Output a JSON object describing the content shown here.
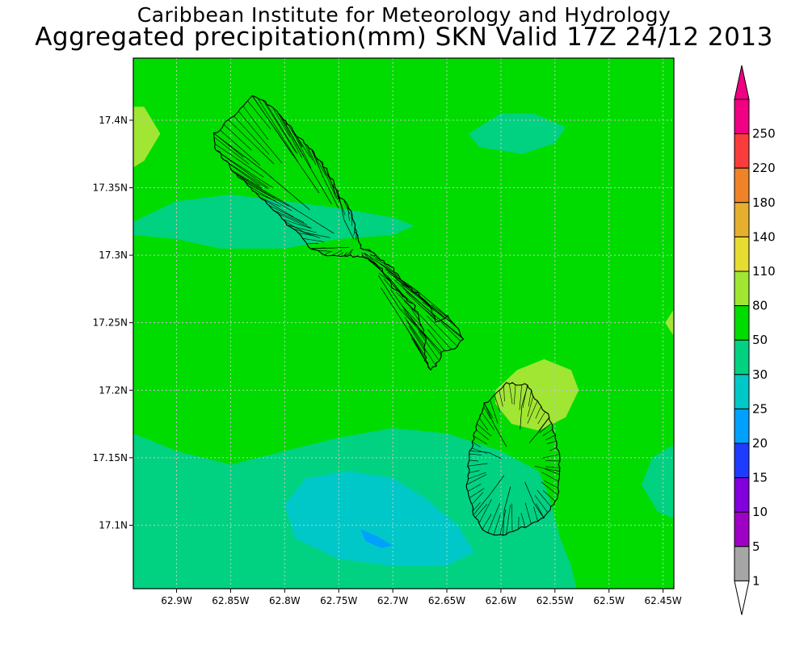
{
  "title": "Caribbean Institute for Meteorology and Hydrology",
  "subtitle": "Aggregated precipitation(mm) SKN Valid 17Z 24/12 2013",
  "map": {
    "lon_min": -62.94,
    "lon_max": -62.44,
    "lat_min": 17.053,
    "lat_max": 17.446,
    "background_category": "50-80",
    "x_ticks": [
      {
        "value": -62.9,
        "label": "62.9W"
      },
      {
        "value": -62.85,
        "label": "62.85W"
      },
      {
        "value": -62.8,
        "label": "62.8W"
      },
      {
        "value": -62.75,
        "label": "62.75W"
      },
      {
        "value": -62.7,
        "label": "62.7W"
      },
      {
        "value": -62.65,
        "label": "62.65W"
      },
      {
        "value": -62.6,
        "label": "62.6W"
      },
      {
        "value": -62.55,
        "label": "62.55W"
      },
      {
        "value": -62.5,
        "label": "62.5W"
      },
      {
        "value": -62.45,
        "label": "62.45W"
      }
    ],
    "y_ticks": [
      {
        "value": 17.4,
        "label": "17.4N"
      },
      {
        "value": 17.35,
        "label": "17.35N"
      },
      {
        "value": 17.3,
        "label": "17.3N"
      },
      {
        "value": 17.25,
        "label": "17.25N"
      },
      {
        "value": 17.2,
        "label": "17.2N"
      },
      {
        "value": 17.15,
        "label": "17.15N"
      },
      {
        "value": 17.1,
        "label": "17.1N"
      }
    ],
    "grid": true,
    "islands": [
      "St. Kitts",
      "Nevis"
    ],
    "zones": [
      {
        "name": "nw-corner",
        "category": "80-110",
        "points": [
          [
            -62.94,
            17.41
          ],
          [
            -62.93,
            17.41
          ],
          [
            -62.915,
            17.39
          ],
          [
            -62.93,
            17.37
          ],
          [
            -62.94,
            17.365
          ]
        ]
      },
      {
        "name": "west-band",
        "category": "30-50",
        "points": [
          [
            -62.94,
            17.325
          ],
          [
            -62.9,
            17.34
          ],
          [
            -62.85,
            17.345
          ],
          [
            -62.8,
            17.34
          ],
          [
            -62.75,
            17.335
          ],
          [
            -62.7,
            17.328
          ],
          [
            -62.68,
            17.322
          ],
          [
            -62.7,
            17.315
          ],
          [
            -62.75,
            17.312
          ],
          [
            -62.8,
            17.305
          ],
          [
            -62.86,
            17.305
          ],
          [
            -62.9,
            17.312
          ],
          [
            -62.94,
            17.315
          ]
        ]
      },
      {
        "name": "ne-blob",
        "category": "30-50",
        "points": [
          [
            -62.63,
            17.39
          ],
          [
            -62.6,
            17.405
          ],
          [
            -62.57,
            17.405
          ],
          [
            -62.54,
            17.395
          ],
          [
            -62.55,
            17.383
          ],
          [
            -62.58,
            17.375
          ],
          [
            -62.62,
            17.38
          ]
        ]
      },
      {
        "name": "east-edge",
        "category": "80-110",
        "points": [
          [
            -62.44,
            17.26
          ],
          [
            -62.448,
            17.25
          ],
          [
            -62.44,
            17.24
          ]
        ]
      },
      {
        "name": "nevis-north",
        "category": "80-110",
        "points": [
          [
            -62.605,
            17.2
          ],
          [
            -62.585,
            17.215
          ],
          [
            -62.56,
            17.223
          ],
          [
            -62.535,
            17.215
          ],
          [
            -62.528,
            17.2
          ],
          [
            -62.54,
            17.18
          ],
          [
            -62.565,
            17.17
          ],
          [
            -62.59,
            17.175
          ],
          [
            -62.605,
            17.19
          ]
        ]
      },
      {
        "name": "south-band",
        "category": "30-50",
        "points": [
          [
            -62.94,
            17.168
          ],
          [
            -62.9,
            17.155
          ],
          [
            -62.85,
            17.145
          ],
          [
            -62.8,
            17.155
          ],
          [
            -62.75,
            17.165
          ],
          [
            -62.7,
            17.172
          ],
          [
            -62.65,
            17.168
          ],
          [
            -62.6,
            17.155
          ],
          [
            -62.565,
            17.14
          ],
          [
            -62.555,
            17.12
          ],
          [
            -62.545,
            17.09
          ],
          [
            -62.535,
            17.07
          ],
          [
            -62.53,
            17.053
          ],
          [
            -62.9,
            17.053
          ],
          [
            -62.94,
            17.053
          ]
        ]
      },
      {
        "name": "east-blob",
        "category": "30-50",
        "points": [
          [
            -62.44,
            17.16
          ],
          [
            -62.46,
            17.15
          ],
          [
            -62.47,
            17.13
          ],
          [
            -62.455,
            17.11
          ],
          [
            -62.44,
            17.105
          ]
        ]
      },
      {
        "name": "south-inner",
        "category": "25-30",
        "points": [
          [
            -62.8,
            17.115
          ],
          [
            -62.78,
            17.135
          ],
          [
            -62.74,
            17.14
          ],
          [
            -62.7,
            17.135
          ],
          [
            -62.67,
            17.12
          ],
          [
            -62.64,
            17.1
          ],
          [
            -62.625,
            17.08
          ],
          [
            -62.65,
            17.07
          ],
          [
            -62.7,
            17.07
          ],
          [
            -62.75,
            17.075
          ],
          [
            -62.79,
            17.09
          ]
        ]
      },
      {
        "name": "small-blue",
        "category": "20-25",
        "points": [
          [
            -62.73,
            17.097
          ],
          [
            -62.715,
            17.092
          ],
          [
            -62.7,
            17.085
          ],
          [
            -62.71,
            17.083
          ],
          [
            -62.725,
            17.088
          ]
        ]
      }
    ],
    "boundaries": [
      {
        "name": "st-kitts-outline",
        "points": [
          [
            -62.865,
            17.39
          ],
          [
            -62.845,
            17.405
          ],
          [
            -62.83,
            17.418
          ],
          [
            -62.82,
            17.415
          ],
          [
            -62.805,
            17.405
          ],
          [
            -62.79,
            17.39
          ],
          [
            -62.775,
            17.378
          ],
          [
            -62.76,
            17.362
          ],
          [
            -62.75,
            17.345
          ],
          [
            -62.74,
            17.335
          ],
          [
            -62.735,
            17.32
          ],
          [
            -62.73,
            17.305
          ],
          [
            -62.715,
            17.3
          ],
          [
            -62.7,
            17.29
          ],
          [
            -62.69,
            17.28
          ],
          [
            -62.675,
            17.27
          ],
          [
            -62.665,
            17.262
          ],
          [
            -62.66,
            17.25
          ],
          [
            -62.65,
            17.255
          ],
          [
            -62.64,
            17.245
          ],
          [
            -62.635,
            17.238
          ],
          [
            -62.64,
            17.232
          ],
          [
            -62.655,
            17.228
          ],
          [
            -62.66,
            17.218
          ],
          [
            -62.665,
            17.215
          ],
          [
            -62.67,
            17.222
          ],
          [
            -62.67,
            17.24
          ],
          [
            -62.68,
            17.262
          ],
          [
            -62.69,
            17.27
          ],
          [
            -62.7,
            17.276
          ],
          [
            -62.71,
            17.29
          ],
          [
            -62.725,
            17.298
          ],
          [
            -62.745,
            17.3
          ],
          [
            -62.76,
            17.3
          ],
          [
            -62.775,
            17.305
          ],
          [
            -62.79,
            17.318
          ],
          [
            -62.8,
            17.325
          ],
          [
            -62.825,
            17.345
          ],
          [
            -62.845,
            17.36
          ],
          [
            -62.865,
            17.38
          ]
        ]
      },
      {
        "name": "nevis-outline",
        "points": [
          [
            -62.615,
            17.19
          ],
          [
            -62.595,
            17.205
          ],
          [
            -62.575,
            17.204
          ],
          [
            -62.565,
            17.19
          ],
          [
            -62.555,
            17.18
          ],
          [
            -62.548,
            17.16
          ],
          [
            -62.545,
            17.14
          ],
          [
            -62.548,
            17.12
          ],
          [
            -62.56,
            17.105
          ],
          [
            -62.575,
            17.1
          ],
          [
            -62.598,
            17.092
          ],
          [
            -62.615,
            17.095
          ],
          [
            -62.625,
            17.108
          ],
          [
            -62.632,
            17.13
          ],
          [
            -62.628,
            17.155
          ],
          [
            -62.622,
            17.175
          ]
        ]
      }
    ]
  },
  "colorbar": {
    "labels": [
      "1",
      "5",
      "10",
      "15",
      "20",
      "25",
      "30",
      "50",
      "80",
      "110",
      "140",
      "180",
      "220",
      "250"
    ],
    "colors": [
      "#a6a6a6",
      "#9f00c5",
      "#8200dc",
      "#1e3cff",
      "#00a0ff",
      "#00c8c8",
      "#00d282",
      "#00dc00",
      "#a0e632",
      "#e6dc32",
      "#e6af2d",
      "#f08228",
      "#fa3c3c",
      "#f00082"
    ],
    "top_arrow_color": "#f00082",
    "bottom_arrow_color": "#ffffff"
  },
  "category_colors": {
    "20-25": "#00a0ff",
    "25-30": "#00c8c8",
    "30-50": "#00d282",
    "50-80": "#00dc00",
    "80-110": "#a0e632"
  }
}
